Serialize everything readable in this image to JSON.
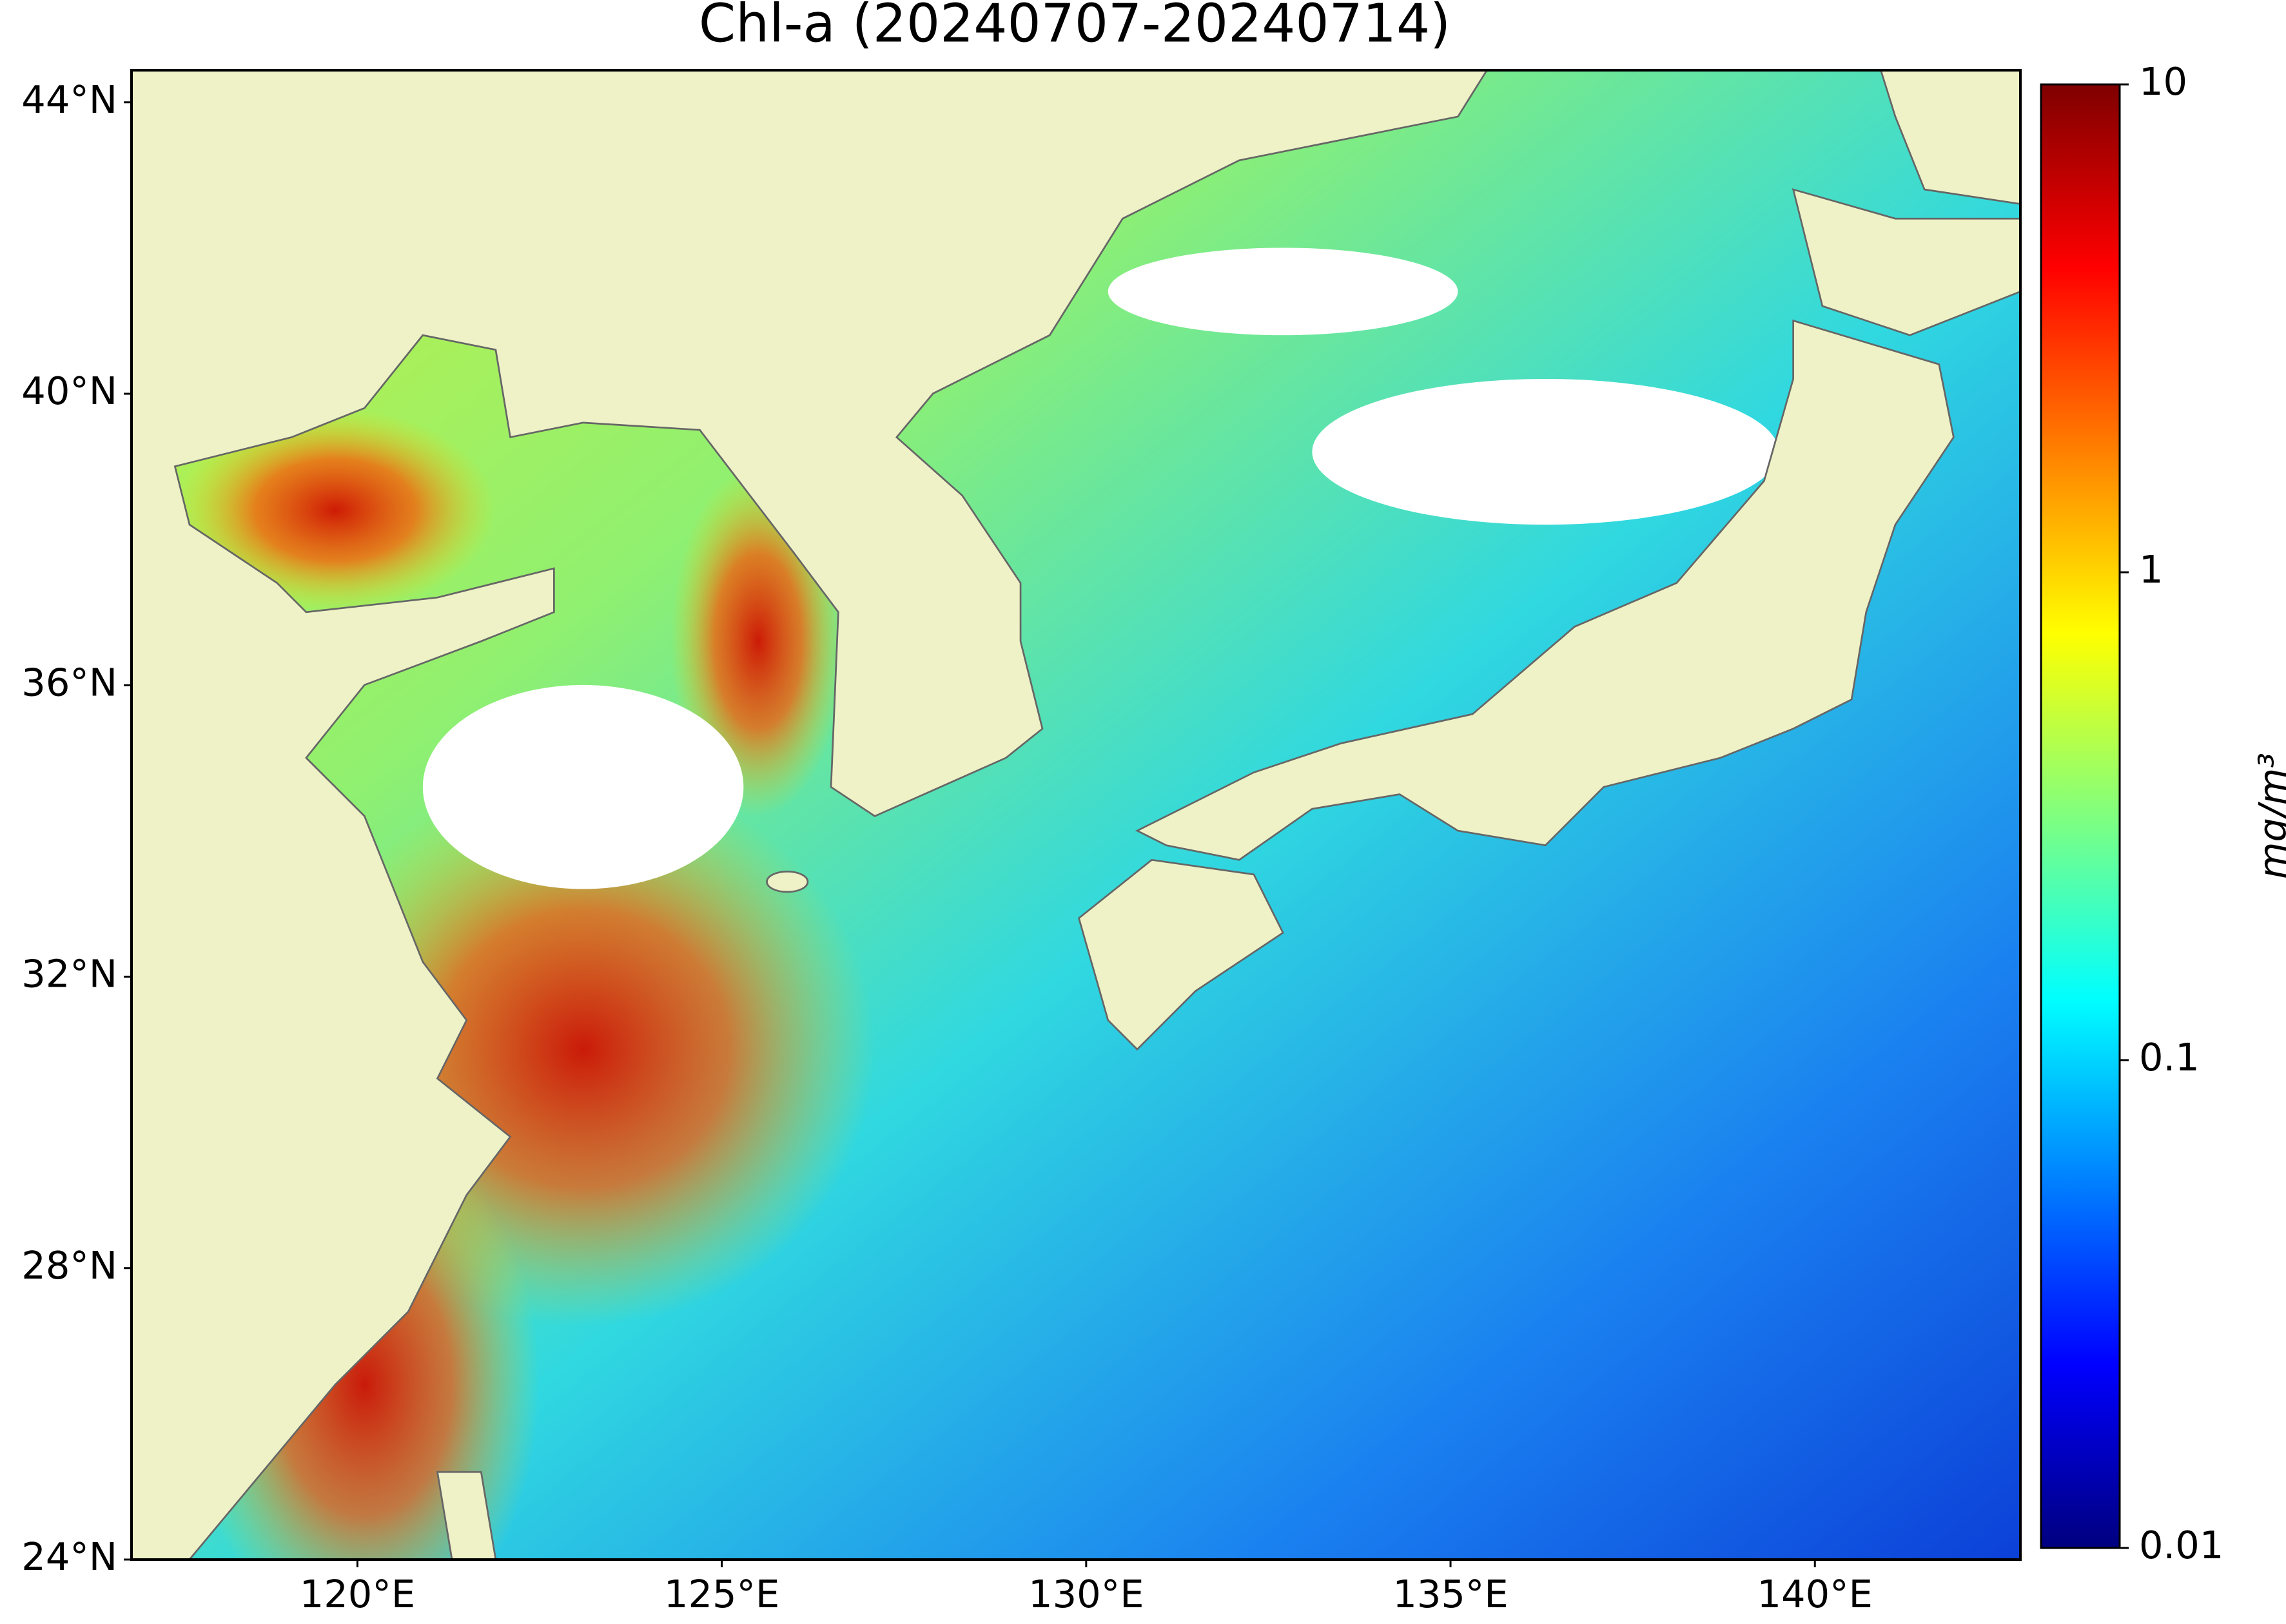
{
  "map": {
    "title": "Chl-a (20240707-20240714)",
    "lonlim": [
      116.9,
      142.82
    ],
    "latlim": [
      24,
      44.44
    ],
    "lon_ticks": [
      {
        "value": 120,
        "label": "120°E"
      },
      {
        "value": 125,
        "label": "125°E"
      },
      {
        "value": 130,
        "label": "130°E"
      },
      {
        "value": 135,
        "label": "135°E"
      },
      {
        "value": 140,
        "label": "140°E"
      }
    ],
    "lat_ticks": [
      {
        "value": 24,
        "label": "24°N"
      },
      {
        "value": 28,
        "label": "28°N"
      },
      {
        "value": 32,
        "label": "32°N"
      },
      {
        "value": 36,
        "label": "36°N"
      },
      {
        "value": 40,
        "label": "40°N"
      },
      {
        "value": 44,
        "label": "44°N"
      }
    ]
  },
  "colorbar": {
    "label": "mg/m³",
    "log": true,
    "lim": [
      0.01,
      10
    ],
    "ticks": [
      0.01,
      0.1,
      1,
      10
    ]
  }
}
